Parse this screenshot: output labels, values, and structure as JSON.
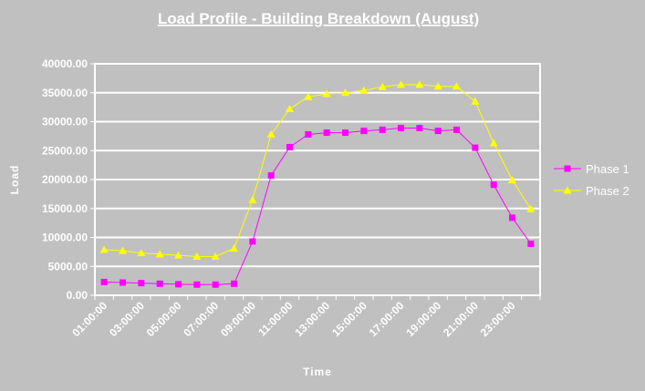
{
  "chart_data": {
    "type": "line",
    "title": "Load Profile - Building Breakdown (August)",
    "xlabel": "Time",
    "ylabel": "Load",
    "ylim": [
      0,
      40000
    ],
    "y_ticks": [
      "0.00",
      "5000.00",
      "10000.00",
      "15000.00",
      "20000.00",
      "25000.00",
      "30000.00",
      "35000.00",
      "40000.00"
    ],
    "x": [
      "01:00:00",
      "02:00:00",
      "03:00:00",
      "04:00:00",
      "05:00:00",
      "06:00:00",
      "07:00:00",
      "08:00:00",
      "09:00:00",
      "10:00:00",
      "11:00:00",
      "12:00:00",
      "13:00:00",
      "14:00:00",
      "15:00:00",
      "16:00:00",
      "17:00:00",
      "18:00:00",
      "19:00:00",
      "20:00:00",
      "21:00:00",
      "22:00:00",
      "23:00:00",
      "24:00:00"
    ],
    "x_tick_labels": [
      "01:00:00",
      "03:00:00",
      "05:00:00",
      "07:00:00",
      "09:00:00",
      "11:00:00",
      "13:00:00",
      "15:00:00",
      "17:00:00",
      "19:00:00",
      "21:00:00",
      "23:00:00"
    ],
    "grid": true,
    "legend_position": "right",
    "series": [
      {
        "name": "Phase 1",
        "color": "#ff00ff",
        "marker": "square",
        "values": [
          2300,
          2200,
          2100,
          2000,
          1900,
          1850,
          1850,
          2000,
          9300,
          20700,
          25600,
          27800,
          28100,
          28100,
          28400,
          28600,
          28900,
          28900,
          28400,
          28600,
          25500,
          19100,
          13400,
          8900
        ]
      },
      {
        "name": "Phase 2",
        "color": "#ffff00",
        "marker": "triangle",
        "values": [
          7900,
          7700,
          7300,
          7100,
          6900,
          6700,
          6700,
          8100,
          16500,
          27800,
          32200,
          34300,
          34800,
          35000,
          35400,
          36000,
          36400,
          36400,
          36100,
          36100,
          33500,
          26300,
          19900,
          14900
        ]
      }
    ]
  }
}
